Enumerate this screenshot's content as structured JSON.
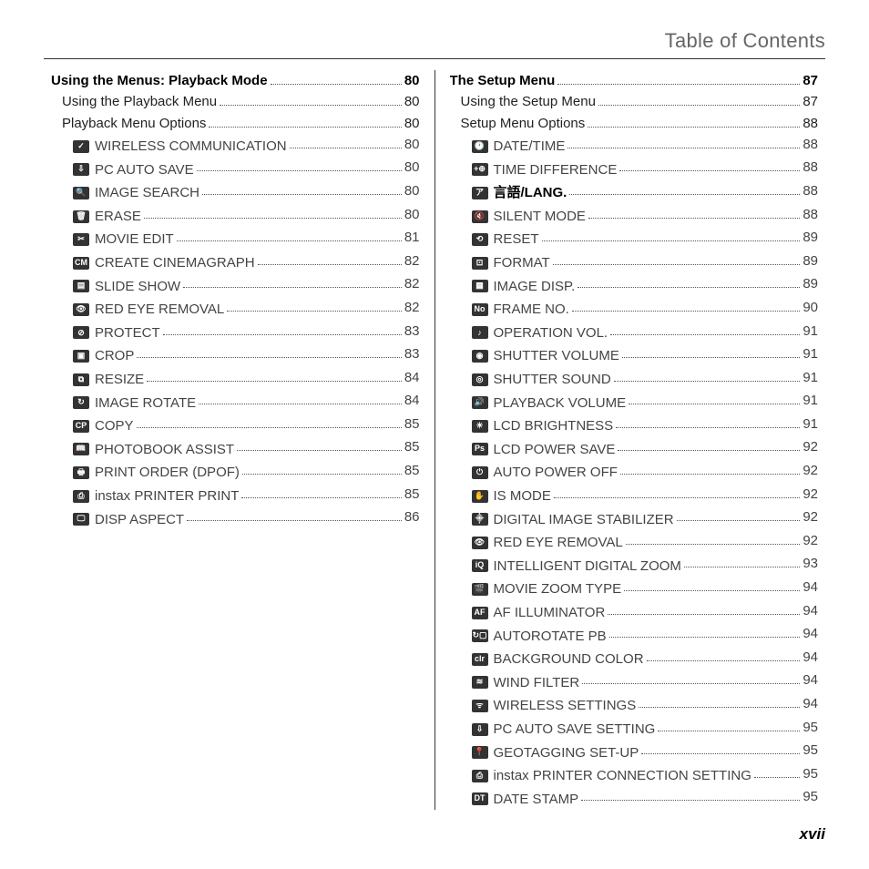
{
  "header": "Table of Contents",
  "page_number": "xvii",
  "left": {
    "section": {
      "label": "Using the Menus: Playback Mode",
      "page": "80"
    },
    "subs": [
      {
        "label": "Using the Playback Menu",
        "page": "80"
      },
      {
        "label": "Playback Menu Options",
        "page": "80"
      }
    ],
    "items": [
      {
        "icon": "✓",
        "label": "WIRELESS COMMUNICATION",
        "page": "80"
      },
      {
        "icon": "⇩",
        "label": "PC AUTO SAVE",
        "page": "80"
      },
      {
        "icon": "🔍",
        "label": "IMAGE SEARCH",
        "page": "80"
      },
      {
        "icon": "🗑",
        "label": "ERASE",
        "page": "80"
      },
      {
        "icon": "✂",
        "label": "MOVIE EDIT",
        "page": "81"
      },
      {
        "icon": "CM",
        "label": "CREATE CINEMAGRAPH",
        "page": "82"
      },
      {
        "icon": "▤",
        "label": "SLIDE SHOW",
        "page": "82"
      },
      {
        "icon": "👁",
        "label": "RED EYE REMOVAL",
        "page": "82"
      },
      {
        "icon": "⊘",
        "label": "PROTECT",
        "page": "83"
      },
      {
        "icon": "▣",
        "label": "CROP",
        "page": "83"
      },
      {
        "icon": "⧉",
        "label": "RESIZE",
        "page": "84"
      },
      {
        "icon": "↻",
        "label": "IMAGE ROTATE",
        "page": "84"
      },
      {
        "icon": "CP",
        "label": "COPY",
        "page": "85"
      },
      {
        "icon": "📖",
        "label": "PHOTOBOOK ASSIST",
        "page": "85"
      },
      {
        "icon": "🖶",
        "label": "PRINT ORDER (DPOF)",
        "page": "85"
      },
      {
        "icon": "⎙",
        "label": "instax PRINTER PRINT",
        "page": "85"
      },
      {
        "icon": "🖵",
        "label": "DISP ASPECT",
        "page": "86"
      }
    ]
  },
  "right": {
    "section": {
      "label": "The Setup Menu",
      "page": "87"
    },
    "subs": [
      {
        "label": "Using the Setup Menu",
        "page": "87"
      },
      {
        "label": "Setup Menu Options",
        "page": "88"
      }
    ],
    "items": [
      {
        "icon": "🕐",
        "label": "DATE/TIME",
        "page": "88"
      },
      {
        "icon": "+⊕",
        "label": "TIME DIFFERENCE",
        "page": "88"
      },
      {
        "icon": "ア",
        "label": "言語/LANG.",
        "page": "88",
        "bold": true
      },
      {
        "icon": "🔇",
        "label": "SILENT MODE",
        "page": "88"
      },
      {
        "icon": "⟲",
        "label": "RESET",
        "page": "89"
      },
      {
        "icon": "⊡",
        "label": "FORMAT",
        "page": "89"
      },
      {
        "icon": "▦",
        "label": "IMAGE DISP.",
        "page": "89"
      },
      {
        "icon": "No",
        "label": "FRAME NO.",
        "page": "90"
      },
      {
        "icon": "♪",
        "label": "OPERATION VOL.",
        "page": "91"
      },
      {
        "icon": "◉",
        "label": "SHUTTER VOLUME",
        "page": "91"
      },
      {
        "icon": "◎",
        "label": "SHUTTER SOUND",
        "page": "91"
      },
      {
        "icon": "🔊",
        "label": "PLAYBACK VOLUME",
        "page": "91"
      },
      {
        "icon": "☀",
        "label": "LCD BRIGHTNESS",
        "page": "91"
      },
      {
        "icon": "Ps",
        "label": "LCD POWER SAVE",
        "page": "92"
      },
      {
        "icon": "⏻",
        "label": "AUTO POWER OFF",
        "page": "92"
      },
      {
        "icon": "✋",
        "label": "IS MODE",
        "page": "92"
      },
      {
        "icon": "⸎",
        "label": "DIGITAL IMAGE STABILIZER",
        "page": "92"
      },
      {
        "icon": "👁",
        "label": "RED EYE REMOVAL",
        "page": "92"
      },
      {
        "icon": "iQ",
        "label": "INTELLIGENT DIGITAL ZOOM",
        "page": "93"
      },
      {
        "icon": "🎬",
        "label": "MOVIE ZOOM TYPE",
        "page": "94"
      },
      {
        "icon": "AF",
        "label": "AF ILLUMINATOR",
        "page": "94"
      },
      {
        "icon": "↻▢",
        "label": "AUTOROTATE PB",
        "page": "94"
      },
      {
        "icon": "clr",
        "label": "BACKGROUND COLOR",
        "page": "94"
      },
      {
        "icon": "≋",
        "label": "WIND FILTER",
        "page": "94"
      },
      {
        "icon": "ᯤ",
        "label": "WIRELESS SETTINGS",
        "page": "94"
      },
      {
        "icon": "⇩",
        "label": "PC AUTO SAVE SETTING",
        "page": "95"
      },
      {
        "icon": "📍",
        "label": "GEOTAGGING SET-UP",
        "page": "95"
      },
      {
        "icon": "⎙",
        "label": "instax PRINTER CONNECTION SETTING",
        "page": "95"
      },
      {
        "icon": "DT",
        "label": "DATE STAMP",
        "page": "95"
      }
    ]
  }
}
